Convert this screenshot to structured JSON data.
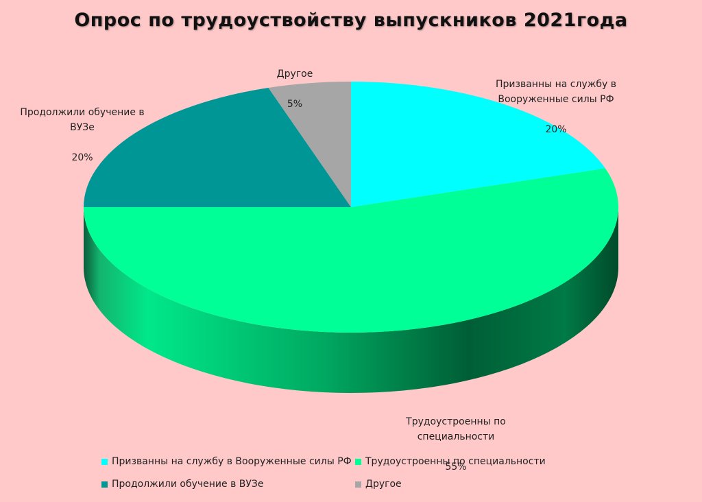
{
  "chart_data": {
    "type": "pie",
    "title": "Опрос по трудоуствойству выпускников 2021года",
    "categories": [
      "Призванны на службу в Вооруженные силы РФ",
      "Трудоустроенны  по специальности",
      "Продолжили обучение в ВУЗе",
      "Другое"
    ],
    "values": [
      20,
      55,
      20,
      5
    ],
    "data_labels": [
      {
        "name": "Призванны на службу в Вооруженные силы РФ",
        "value": "20%"
      },
      {
        "name": "Трудоустроенны  по специальности",
        "value": "55%"
      },
      {
        "name": "Продолжили обучение в ВУЗе",
        "value": "20%"
      },
      {
        "name": "Другое",
        "value": "5%"
      }
    ],
    "colors": [
      "#00ffff",
      "#00ff96",
      "#009696",
      "#a6a6a6"
    ],
    "legend_position": "bottom",
    "style": "3d"
  }
}
